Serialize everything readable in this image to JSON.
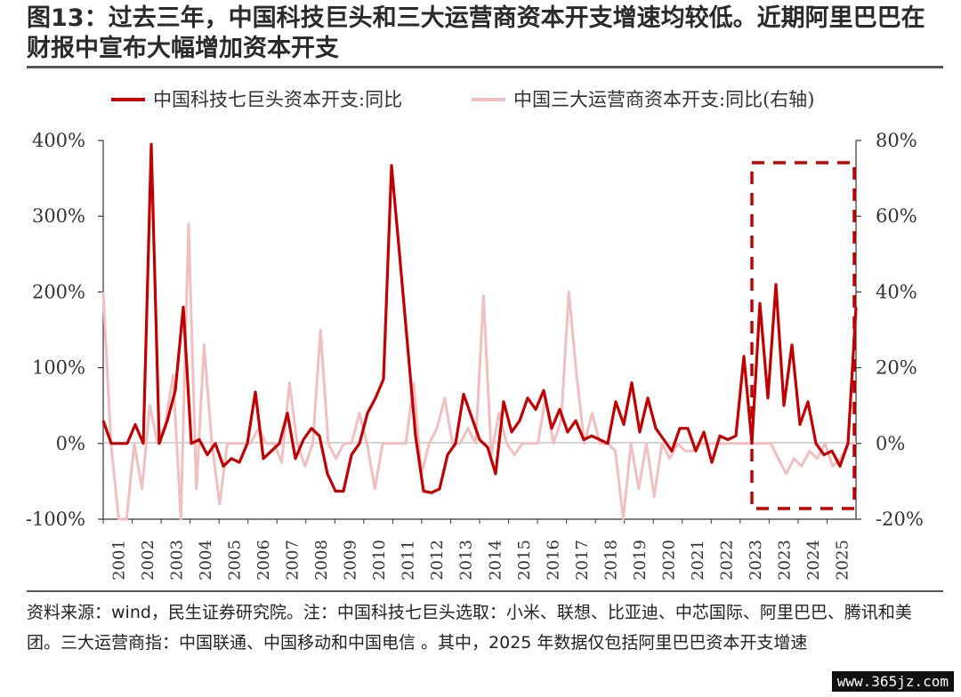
{
  "title": "图13：过去三年，中国科技巨头和三大运营商资本开支增速均较低。近期阿里巴巴在财报中宣布大幅增加资本开支",
  "source_note": "资料来源：wind，民生证券研究院。注：中国科技七巨头选取：小米、联想、比亚迪、中芯国际、阿里巴巴、腾讯和美团。三大运营商指：中国联通、中国移动和中国电信 。其中，2025 年数据仅包括阿里巴巴资本开支增速",
  "watermark": "www.365jz.com",
  "colors": {
    "series1": "#c00000",
    "series2": "#f0c0c0",
    "highlight": "#c00000",
    "axis": "#333333"
  },
  "chart_data": {
    "type": "line",
    "title": "",
    "x_tick_labels": [
      "2001",
      "2002",
      "2003",
      "2004",
      "2005",
      "2006",
      "2007",
      "2008",
      "2009",
      "2010",
      "2011",
      "2012",
      "2013",
      "2014",
      "2015",
      "2016",
      "2017",
      "2018",
      "2019",
      "2020",
      "2021",
      "2022",
      "2023",
      "2023",
      "2024",
      "2025"
    ],
    "y_left": {
      "ticks": [
        "400%",
        "300%",
        "200%",
        "100%",
        "0%",
        "-100%"
      ],
      "range": [
        -100,
        400
      ]
    },
    "y_right": {
      "ticks": [
        "80%",
        "60%",
        "40%",
        "20%",
        "0%",
        "-20%"
      ],
      "range": [
        -20,
        80
      ]
    },
    "legend_position": "top",
    "series": [
      {
        "name": "中国科技七巨头资本开支:同比",
        "axis": "left",
        "values": [
          30,
          0,
          0,
          0,
          25,
          0,
          395,
          0,
          30,
          70,
          180,
          0,
          5,
          -15,
          0,
          -30,
          -20,
          -25,
          0,
          68,
          -20,
          -10,
          0,
          40,
          -20,
          5,
          20,
          10,
          -40,
          -63,
          -63,
          -15,
          0,
          40,
          60,
          85,
          367,
          250,
          130,
          10,
          -63,
          -65,
          -60,
          -15,
          0,
          65,
          35,
          5,
          -5,
          -40,
          55,
          15,
          30,
          60,
          45,
          70,
          20,
          45,
          15,
          30,
          5,
          10,
          5,
          0,
          55,
          25,
          80,
          15,
          60,
          20,
          5,
          -10,
          20,
          20,
          -10,
          15,
          -25,
          10,
          5,
          10,
          115,
          0,
          185,
          60,
          210,
          50,
          130,
          25,
          55,
          0,
          -15,
          -10,
          -30,
          0,
          180
        ]
      },
      {
        "name": "中国三大运营商资本开支:同比(右轴)",
        "axis": "right",
        "values": [
          40,
          0,
          -20,
          -20,
          0,
          -12,
          10,
          0,
          5,
          18,
          -20,
          58,
          -12,
          26,
          0,
          -16,
          0,
          0,
          0,
          0,
          4,
          0,
          0,
          -5,
          16,
          0,
          -6,
          0,
          30,
          0,
          -4,
          0,
          0,
          8,
          0,
          -12,
          0,
          0,
          0,
          0,
          16,
          -8,
          0,
          4,
          12,
          0,
          0,
          4,
          0,
          39,
          -3,
          8,
          0,
          -3,
          0,
          0,
          0,
          12,
          0,
          6,
          40,
          18,
          0,
          8,
          0,
          0,
          -2,
          -20,
          0,
          -12,
          0,
          -14,
          0,
          -4,
          0,
          -2,
          -2,
          0,
          0,
          0,
          0,
          0,
          0,
          0,
          0,
          0,
          0,
          -4,
          -8,
          -4,
          -6,
          -2,
          -4,
          0,
          -6,
          -4,
          0,
          0
        ]
      }
    ]
  }
}
